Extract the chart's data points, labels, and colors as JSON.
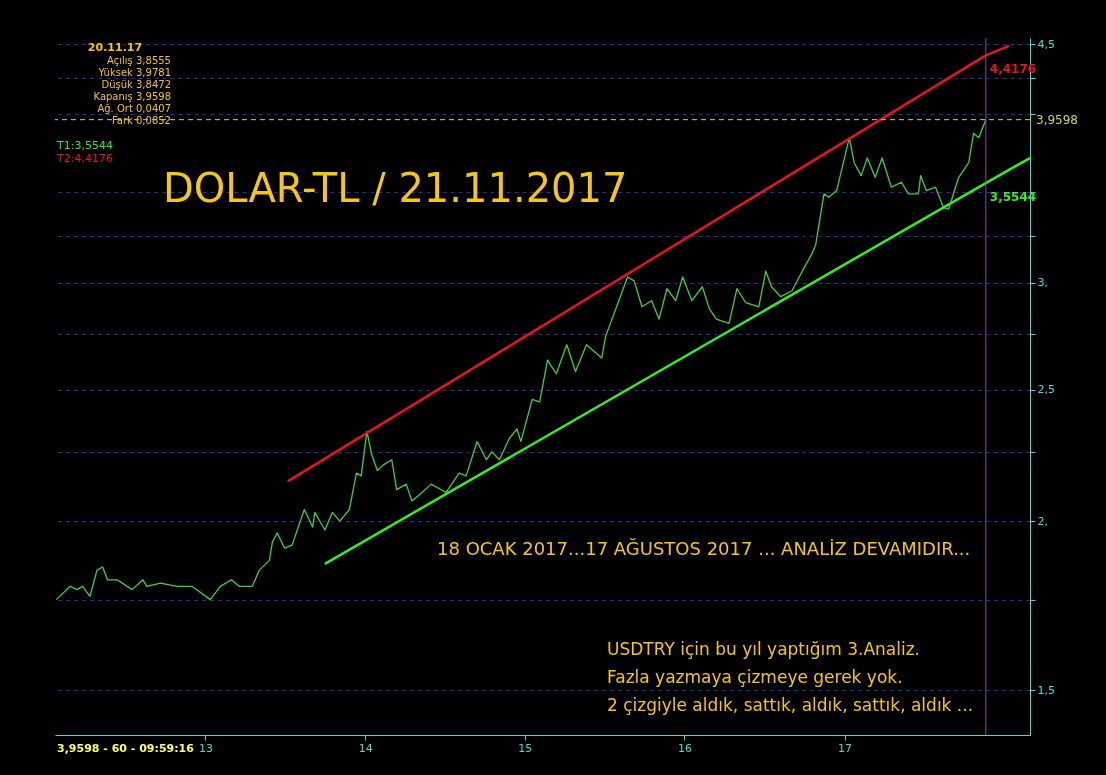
{
  "chart_data": {
    "type": "line",
    "title": "DOLAR-TL / 21.11.2017",
    "annotations": [
      "20.11.17",
      "Açılış 3,8555",
      "Yüksek 3,9781",
      "Düşük 3,8472",
      "Kapanış 3,9598",
      "Ağ. Ort 0,0407",
      "Fark 0,0852",
      "T1:3,5544",
      "T2:4,4176",
      "18 OCAK 2017...17 AĞUSTOS 2017 ... ANALİZ DEVAMIDIR...",
      "USDTRY için bu yıl yaptığım 3.Analiz.",
      "Fazla yazmaya çizmeye gerek yok.",
      "2 çizgiyle aldık, sattık, aldık, sattık, aldık ...",
      "3,9598 - 60 - 09:59:16"
    ],
    "x": [
      "2012-01-26",
      "2012-02-27",
      "2012-03-13",
      "2012-03-26",
      "2012-04-12",
      "2012-04-28",
      "2012-05-11",
      "2012-05-22",
      "2012-06-13",
      "2012-07-17",
      "2012-08-11",
      "2012-08-20",
      "2012-09-20",
      "2012-10-28",
      "2012-12-01",
      "2013-01-12",
      "2013-02-04",
      "2013-03-01",
      "2013-03-19",
      "2013-04-18",
      "2013-05-04",
      "2013-05-27",
      "2013-06-03",
      "2013-06-14",
      "2013-07-01",
      "2013-07-18",
      "2013-08-15",
      "2013-09-03",
      "2013-09-08",
      "2013-10-01",
      "2013-10-18",
      "2013-11-04",
      "2013-11-26",
      "2013-12-12",
      "2013-12-23",
      "2014-01-05",
      "2014-01-16",
      "2014-01-29",
      "2014-02-11",
      "2014-03-03",
      "2014-03-14",
      "2014-04-05",
      "2014-04-18",
      "2014-05-04",
      "2014-06-01",
      "2014-07-05",
      "2014-08-04",
      "2014-08-20",
      "2014-09-14",
      "2014-10-05",
      "2014-10-18",
      "2014-11-04",
      "2014-11-26",
      "2014-12-14",
      "2014-12-23",
      "2015-01-18",
      "2015-02-04",
      "2015-02-22",
      "2015-03-14",
      "2015-04-07",
      "2015-04-27",
      "2015-05-22",
      "2015-06-26",
      "2015-07-05",
      "2015-08-04",
      "2015-08-24",
      "2015-09-08",
      "2015-09-26",
      "2015-10-18",
      "2015-11-04",
      "2015-11-22",
      "2015-12-12",
      "2015-12-28",
      "2016-01-18",
      "2016-02-11",
      "2016-02-27",
      "2016-03-14",
      "2016-04-12",
      "2016-04-30",
      "2016-05-20",
      "2016-06-19",
      "2016-07-05",
      "2016-07-18",
      "2016-08-08",
      "2016-09-03",
      "2016-10-01",
      "2016-10-18",
      "2016-10-27",
      "2016-11-15",
      "2016-11-26",
      "2016-12-14",
      "2017-01-12",
      "2017-01-23",
      "2017-02-08",
      "2017-02-22",
      "2017-03-12",
      "2017-03-28",
      "2017-04-18",
      "2017-05-11",
      "2017-05-27",
      "2017-06-19",
      "2017-06-24",
      "2017-07-07",
      "2017-07-28",
      "2017-08-15",
      "2017-08-27",
      "2017-09-19",
      "2017-10-12",
      "2017-10-23",
      "2017-11-04",
      "2017-11-20"
    ],
    "series": [
      {
        "color": "#3fd03f",
        "values": [
          1.75,
          1.79,
          1.78,
          1.79,
          1.76,
          1.84,
          1.85,
          1.81,
          1.81,
          1.78,
          1.81,
          1.79,
          1.8,
          1.79,
          1.79,
          1.75,
          1.79,
          1.81,
          1.79,
          1.79,
          1.84,
          1.87,
          1.93,
          1.96,
          1.91,
          1.92,
          2.04,
          1.98,
          2.03,
          1.97,
          2.03,
          2.0,
          2.04,
          2.17,
          2.16,
          2.33,
          2.24,
          2.18,
          2.2,
          2.22,
          2.11,
          2.13,
          2.07,
          2.09,
          2.13,
          2.1,
          2.17,
          2.16,
          2.29,
          2.22,
          2.25,
          2.22,
          2.3,
          2.34,
          2.29,
          2.46,
          2.45,
          2.63,
          2.57,
          2.7,
          2.58,
          2.7,
          2.64,
          2.74,
          2.91,
          3.03,
          3.01,
          2.88,
          2.91,
          2.82,
          2.97,
          2.91,
          3.03,
          2.91,
          2.98,
          2.87,
          2.82,
          2.8,
          2.97,
          2.9,
          2.88,
          3.06,
          2.98,
          2.93,
          2.96,
          3.08,
          3.15,
          3.2,
          3.49,
          3.47,
          3.51,
          3.84,
          3.68,
          3.6,
          3.71,
          3.59,
          3.71,
          3.53,
          3.56,
          3.49,
          3.49,
          3.6,
          3.51,
          3.53,
          3.41,
          3.4,
          3.59,
          3.68,
          3.87,
          3.84,
          3.9598
        ]
      },
      {
        "type": "line",
        "color": "#e8141e",
        "x": [
          "2013-07-08",
          "2017-11-20",
          "2018-01-12"
        ],
        "values": [
          2.14,
          4.4176,
          4.49
        ],
        "value_labels": [
          null,
          "4,4176",
          null
        ]
      },
      {
        "type": "line",
        "color": "#33ee22",
        "x": [
          "2013-10-01",
          "2017-11-20",
          "2018-03-01"
        ],
        "values": [
          1.86,
          3.5544,
          3.71
        ],
        "value_labels": [
          null,
          "3,5544",
          null
        ]
      }
    ],
    "xlim": [
      "2012-01-23",
      "2018-03-01"
    ],
    "xticks": [
      {
        "value": "2013-01-01",
        "label": "13"
      },
      {
        "value": "2014-01-01",
        "label": "14"
      },
      {
        "value": "2015-01-01",
        "label": "15"
      },
      {
        "value": "2016-01-01",
        "label": "16"
      },
      {
        "value": "2017-01-01",
        "label": "17"
      }
    ],
    "ylim": [
      1.39,
      4.55
    ],
    "yticks": [
      {
        "value": 1.5,
        "label": "1,5"
      },
      {
        "value": 1.75,
        "label": null
      },
      {
        "value": 2,
        "label": "2,"
      },
      {
        "value": 2.25,
        "label": null
      },
      {
        "value": 2.5,
        "label": "2,5"
      },
      {
        "value": 2.75,
        "label": null
      },
      {
        "value": 3,
        "label": "3,"
      },
      {
        "value": 3.25,
        "label": null
      },
      {
        "value": 3.5,
        "label": null
      },
      {
        "value": 4,
        "label": null
      },
      {
        "value": 4.25,
        "label": null
      },
      {
        "value": 4.5,
        "label": "4,5"
      }
    ],
    "log": true,
    "grid": "y",
    "ref_lines": [
      {
        "axis": "y",
        "value": 3.9598,
        "label": "3,9598",
        "color": "#c8d94a",
        "line_style": "dashed"
      },
      {
        "axis": "x",
        "value": "2017-11-20",
        "label": null,
        "color": "#8e44ad"
      }
    ]
  }
}
